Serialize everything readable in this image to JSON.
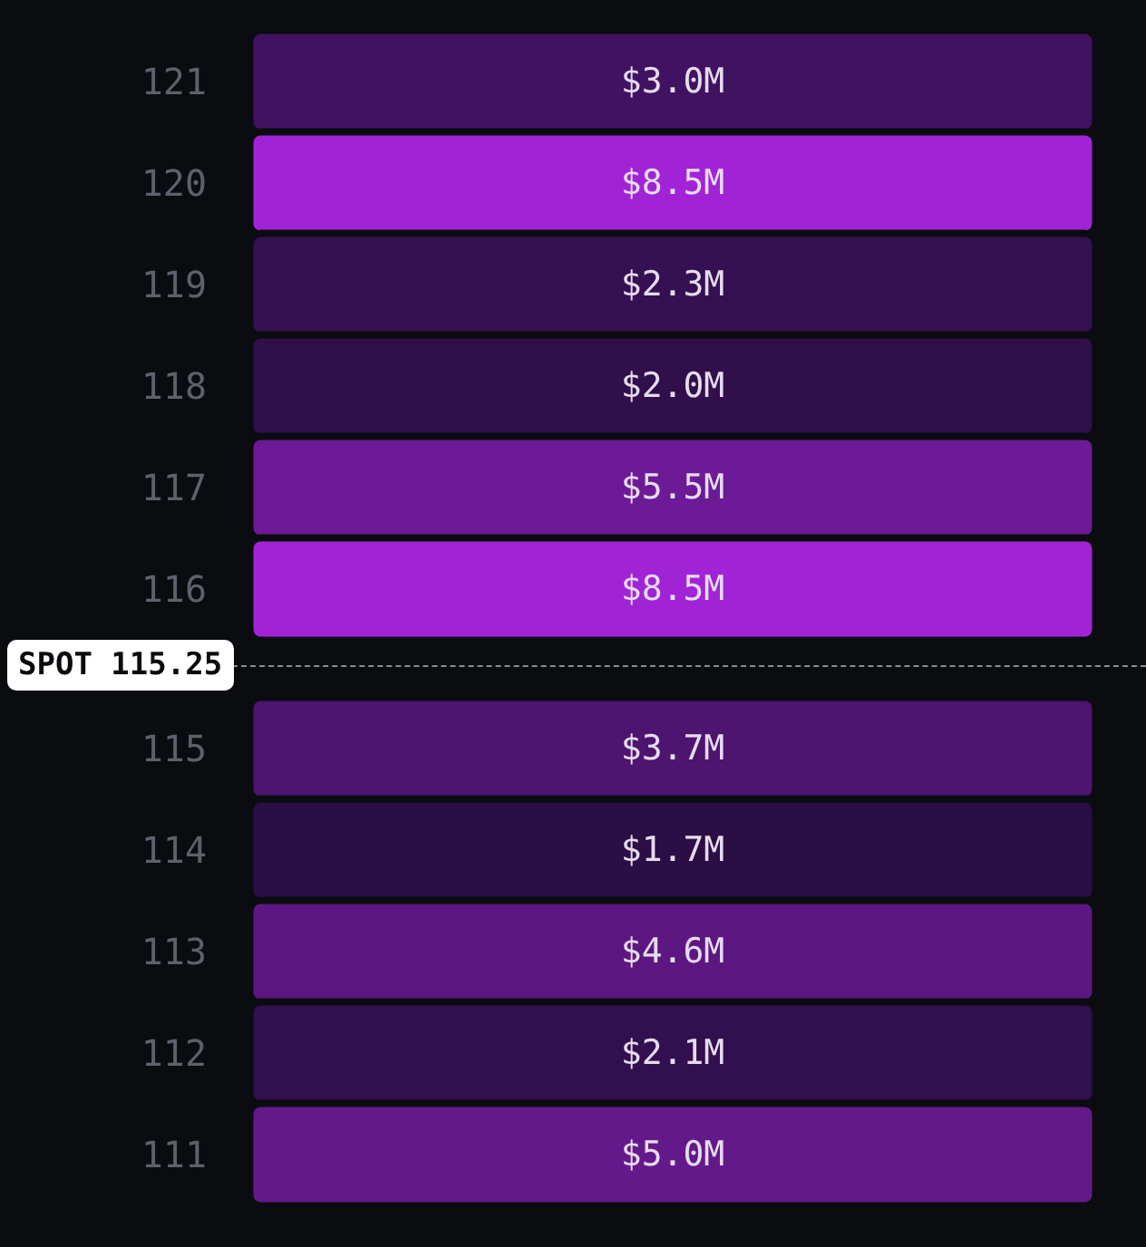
{
  "chart_data": [
    {
      "type": "heatmap",
      "categories": [
        null
      ],
      "y_categories": [
        "121",
        "120",
        "119",
        "118",
        "117",
        "116"
      ],
      "cells": [
        [
          3.0
        ],
        [
          8.5
        ],
        [
          2.3
        ],
        [
          2.0
        ],
        [
          5.5
        ],
        [
          8.5
        ]
      ],
      "cell_labels": [
        [
          "$3.0M"
        ],
        [
          "$8.5M"
        ],
        [
          "$2.3M"
        ],
        [
          "$2.0M"
        ],
        [
          "$5.5M"
        ],
        [
          "$8.5M"
        ]
      ]
    },
    {
      "type": "heatmap",
      "categories": [
        null
      ],
      "y_categories": [
        "115",
        "114",
        "113",
        "112",
        "111"
      ],
      "cells": [
        [
          3.7
        ],
        [
          1.7
        ],
        [
          4.6
        ],
        [
          2.1
        ],
        [
          5.0
        ]
      ],
      "cell_labels": [
        [
          "$3.7M"
        ],
        [
          "$1.7M"
        ],
        [
          "$4.6M"
        ],
        [
          "$2.1M"
        ],
        [
          "$5.0M"
        ]
      ],
      "annotations": [
        "SPOT 115.25"
      ]
    }
  ]
}
